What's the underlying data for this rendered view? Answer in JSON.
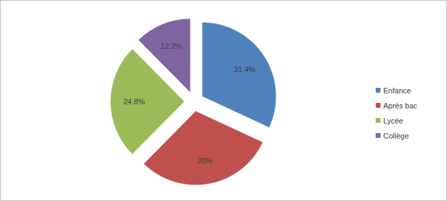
{
  "chart_data": {
    "type": "pie",
    "categories": [
      "Enfance",
      "Après bac",
      "Lycée",
      "Collège"
    ],
    "values": [
      31.4,
      30,
      24.8,
      12.2
    ],
    "value_labels": [
      "31.4%",
      "30%",
      "24.8%",
      "12.2%"
    ],
    "colors": [
      "#4f81bd",
      "#c0504d",
      "#9bbb59",
      "#8064a2"
    ],
    "data_labels": true,
    "legend": "right"
  }
}
